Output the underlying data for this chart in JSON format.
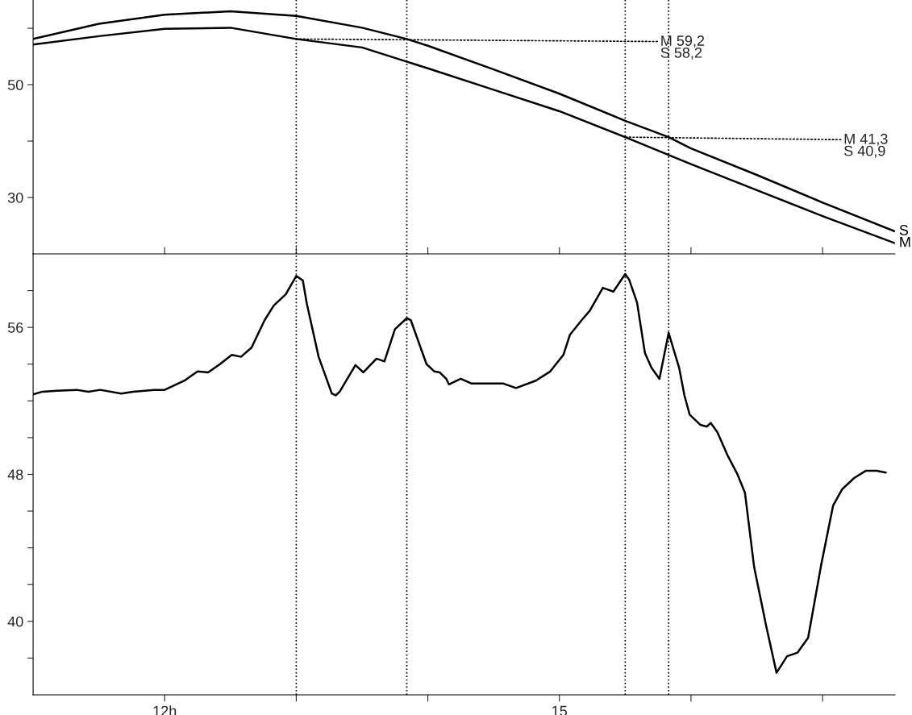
{
  "chart_data": [
    {
      "type": "line",
      "xlim": [
        11,
        17.55
      ],
      "ylim": [
        20,
        65
      ],
      "xticks": [
        {
          "value": 12,
          "label": null
        },
        {
          "value": 13,
          "label": null
        },
        {
          "value": 14,
          "label": null
        },
        {
          "value": 15,
          "label": null
        },
        {
          "value": 16,
          "label": null
        },
        {
          "value": 17,
          "label": null
        }
      ],
      "yticks": [
        30,
        {
          "value": 40,
          "label": null
        },
        50,
        {
          "value": 60,
          "label": null
        }
      ],
      "tick_labels": "y",
      "series": [
        {
          "name": "S",
          "color": "#000000",
          "x": [
            11,
            11.5,
            12,
            12.5,
            13,
            13.5,
            13.84,
            14,
            14.5,
            15,
            15.5,
            15.83,
            16,
            16.5,
            17,
            17.55
          ],
          "values": [
            58.1,
            60.8,
            62.4,
            63.0,
            62.2,
            60.1,
            58.1,
            56.9,
            52.7,
            48.4,
            43.6,
            40.7,
            38.7,
            34.0,
            29.1,
            24.0
          ]
        },
        {
          "name": "M",
          "color": "#000000",
          "x": [
            11,
            11.5,
            12,
            12.5,
            13,
            13.5,
            14,
            14.5,
            15,
            15.5,
            16,
            16.5,
            17,
            17.55
          ],
          "values": [
            57.1,
            58.6,
            59.9,
            60.1,
            58.1,
            56.6,
            52.9,
            49.1,
            45.3,
            40.7,
            35.9,
            31.3,
            26.7,
            21.9
          ]
        }
      ],
      "annotations": [
        {
          "text": "M 59,2\nS 58,2",
          "x": 13.0,
          "y": 58.1
        },
        {
          "text": "M 41,3\nS 40,9",
          "x": 15.5,
          "y": 40.7
        }
      ],
      "ref_lines": [
        {
          "axis": "x",
          "value": 13.0,
          "label": null,
          "line_style": "dotted"
        },
        {
          "axis": "x",
          "value": 13.84,
          "label": null,
          "line_style": "dotted"
        },
        {
          "axis": "x",
          "value": 15.5,
          "label": null,
          "line_style": "dotted"
        },
        {
          "axis": "x",
          "value": 15.83,
          "label": null,
          "line_style": "dotted"
        }
      ]
    },
    {
      "type": "line",
      "xlim": [
        11,
        17.55
      ],
      "ylim": [
        36,
        60
      ],
      "xticks": [
        {
          "value": 12,
          "label": "12h"
        },
        {
          "value": 13,
          "label": null
        },
        {
          "value": 14,
          "label": null
        },
        15,
        {
          "value": 16,
          "label": null
        },
        {
          "value": 17,
          "label": null
        }
      ],
      "yticks": [
        {
          "value": 38,
          "label": null
        },
        40,
        {
          "value": 42,
          "label": null
        },
        {
          "value": 44,
          "label": null
        },
        {
          "value": 46,
          "label": null
        },
        48,
        {
          "value": 50,
          "label": null
        },
        {
          "value": 52,
          "label": null
        },
        {
          "value": 54,
          "label": null
        },
        56,
        {
          "value": 58,
          "label": null
        }
      ],
      "series": [
        {
          "color": "#000000",
          "x": [
            11.0,
            11.07,
            11.18,
            11.33,
            11.42,
            11.51,
            11.67,
            11.76,
            11.92,
            12.0,
            12.15,
            12.25,
            12.33,
            12.42,
            12.51,
            12.58,
            12.66,
            12.76,
            12.83,
            12.92,
            13.0,
            13.05,
            13.08,
            13.17,
            13.27,
            13.3,
            13.33,
            13.45,
            13.51,
            13.61,
            13.67,
            13.75,
            13.84,
            13.87,
            13.99,
            14.05,
            14.09,
            14.14,
            14.16,
            14.25,
            14.33,
            14.57,
            14.67,
            14.82,
            14.93,
            15.03,
            15.08,
            15.17,
            15.23,
            15.33,
            15.41,
            15.5,
            15.53,
            15.59,
            15.65,
            15.7,
            15.76,
            15.83,
            15.91,
            15.95,
            15.99,
            16.07,
            16.12,
            16.15,
            16.2,
            16.28,
            16.35,
            16.41,
            16.48,
            16.57,
            16.65,
            16.73,
            16.81,
            16.89,
            16.99,
            17.08,
            17.15,
            17.24,
            17.33,
            17.41,
            17.48
          ],
          "values": [
            52.35,
            52.5,
            52.55,
            52.6,
            52.5,
            52.6,
            52.4,
            52.5,
            52.6,
            52.6,
            53.1,
            53.6,
            53.55,
            54.0,
            54.5,
            54.4,
            54.9,
            56.4,
            57.2,
            57.8,
            58.8,
            58.55,
            57.3,
            54.4,
            52.4,
            52.3,
            52.5,
            53.95,
            53.55,
            54.3,
            54.15,
            55.9,
            56.5,
            56.4,
            54.0,
            53.6,
            53.55,
            53.2,
            52.9,
            53.2,
            52.95,
            52.95,
            52.7,
            53.1,
            53.6,
            54.5,
            55.6,
            56.4,
            56.9,
            58.15,
            57.95,
            58.9,
            58.6,
            57.35,
            54.6,
            53.8,
            53.2,
            55.7,
            53.8,
            52.3,
            51.25,
            50.7,
            50.6,
            50.8,
            50.3,
            49.0,
            48.05,
            47.0,
            42.95,
            39.8,
            37.2,
            38.1,
            38.3,
            39.1,
            43.1,
            46.3,
            47.2,
            47.8,
            48.2,
            48.2,
            48.1
          ]
        }
      ],
      "ref_lines": [
        {
          "axis": "x",
          "value": 13.0,
          "label": null,
          "line_style": "dotted"
        },
        {
          "axis": "x",
          "value": 13.84,
          "label": null,
          "line_style": "dotted"
        },
        {
          "axis": "x",
          "value": 15.5,
          "label": null,
          "line_style": "dotted"
        },
        {
          "axis": "x",
          "value": 15.83,
          "label": null,
          "line_style": "dotted"
        }
      ]
    }
  ]
}
